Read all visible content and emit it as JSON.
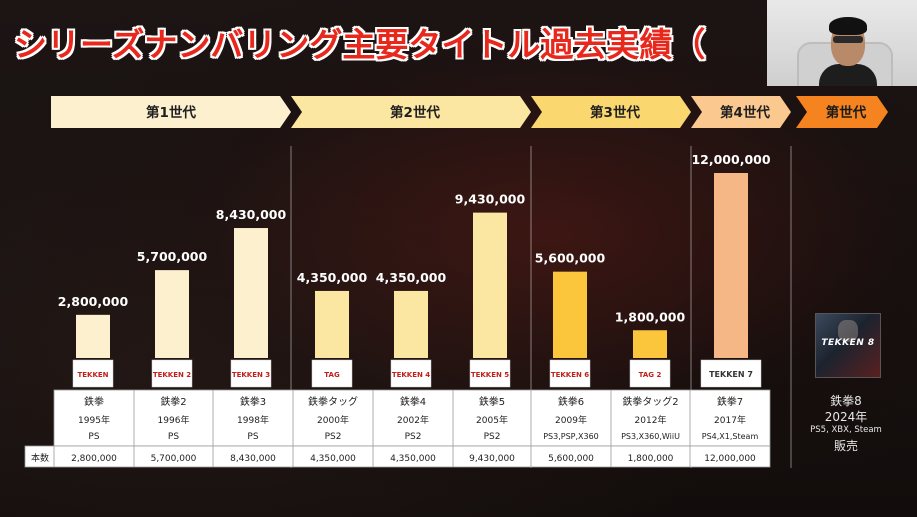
{
  "header": {
    "title": "シリーズナンバリング主要タイトル過去実績（"
  },
  "generation_bar": [
    {
      "label": "第1世代",
      "color": "#fdf0cf"
    },
    {
      "label": "第2世代",
      "color": "#fbe6a2"
    },
    {
      "label": "第3世代",
      "color": "#fbd76f"
    },
    {
      "label": "第4世代",
      "color": "#fbc98f"
    },
    {
      "label": "第世代",
      "color": "#f5831f"
    }
  ],
  "chart_data": {
    "type": "bar",
    "categories": [
      "鉄拳",
      "鉄拳2",
      "鉄拳3",
      "鉄拳タッグ",
      "鉄拳4",
      "鉄拳5",
      "鉄拳6",
      "鉄拳タッグ2",
      "鉄拳7"
    ],
    "values": [
      2800000,
      5700000,
      8430000,
      4350000,
      4350000,
      9430000,
      5600000,
      1800000,
      12000000
    ],
    "value_labels": [
      "2,800,000",
      "5,700,000",
      "8,430,000",
      "4,350,000",
      "4,350,000",
      "9,430,000",
      "5,600,000",
      "1,800,000",
      "12,000,000"
    ],
    "years": [
      "1995年",
      "1996年",
      "1998年",
      "2000年",
      "2002年",
      "2005年",
      "2009年",
      "2012年",
      "2017年"
    ],
    "platforms": [
      "PS",
      "PS",
      "PS",
      "PS2",
      "PS2",
      "PS2",
      "PS3,PSP,X360",
      "PS3,X360,WiiU",
      "PS4,X1,Steam"
    ],
    "bar_colors": [
      "#fdf0cf",
      "#fdf0cf",
      "#fdf0cf",
      "#fbe6a2",
      "#fbe6a2",
      "#fbe6a2",
      "#fbc53c",
      "#fbc53c",
      "#f5b785"
    ],
    "logos": [
      "TEKKEN",
      "TEKKEN 2",
      "TEKKEN 3",
      "TAG",
      "TEKKEN 4",
      "TEKKEN 5",
      "TEKKEN 6",
      "TAG 2",
      "TEKKEN 7"
    ],
    "row_label": "本数",
    "ylim": [
      0,
      12000000
    ]
  },
  "upcoming": {
    "cover_logo": "TEKKEN 8",
    "name": "鉄拳8",
    "year": "2024年",
    "platforms": "PS5, XBX, Steam",
    "status": "販売"
  }
}
